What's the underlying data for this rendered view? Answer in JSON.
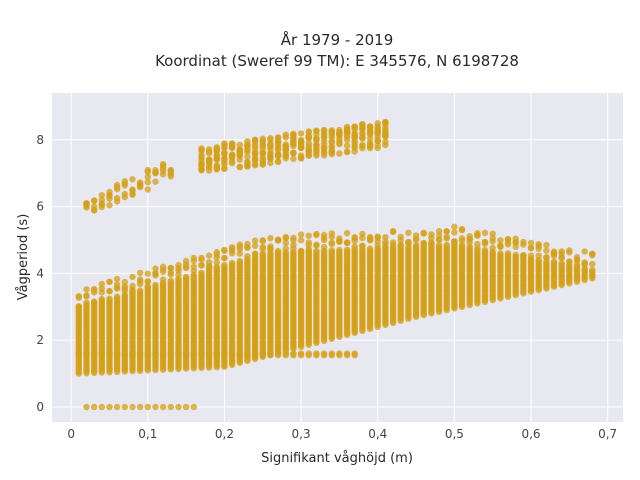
{
  "chart_data": {
    "type": "scatter",
    "title_lines": [
      "År 1979 - 2019",
      "Koordinat (Sweref 99 TM): E 345576, N 6198728"
    ],
    "xlabel": "Signifikant våghöjd (m)",
    "ylabel": "Vågperiod (s)",
    "xlim": [
      -0.025,
      0.72
    ],
    "ylim": [
      -0.45,
      9.4
    ],
    "xticks": [
      0,
      0.1,
      0.2,
      0.3,
      0.4,
      0.5,
      0.6,
      0.7
    ],
    "xtick_labels": [
      "0",
      "0,1",
      "0,2",
      "0,3",
      "0,4",
      "0,5",
      "0,6",
      "0,7"
    ],
    "yticks": [
      0,
      2,
      4,
      6,
      8
    ],
    "ytick_labels": [
      "0",
      "2",
      "4",
      "6",
      "8"
    ],
    "grid": true,
    "marker_color": "#d4a017",
    "plot_background": "#e8e8f0",
    "series": [
      {
        "clusters": [
          {
            "name": "main-band",
            "x_range": [
              0.01,
              0.69
            ],
            "y_low": [
              1.0,
              1.2,
              2.7,
              3.9
            ],
            "y_low_x": [
              0.01,
              0.2,
              0.45,
              0.69
            ],
            "y_high": [
              3.0,
              4.6,
              4.9,
              4.1
            ],
            "y_high_x": [
              0.01,
              0.25,
              0.5,
              0.69
            ]
          },
          {
            "name": "upper-band",
            "x_range": [
              0.17,
              0.42
            ],
            "y_center": [
              7.4,
              8.2
            ],
            "y_center_x": [
              0.17,
              0.42
            ]
          },
          {
            "name": "swell-low",
            "x_range": [
              0.02,
              0.13
            ],
            "y_center": [
              6.0,
              7.1
            ],
            "y_center_x": [
              0.02,
              0.13
            ]
          },
          {
            "name": "zero-period",
            "x_range": [
              0.02,
              0.16
            ],
            "y": 0
          },
          {
            "name": "short-period-band",
            "x_range": [
              0.01,
              0.38
            ],
            "y": 1.6
          }
        ]
      }
    ]
  }
}
